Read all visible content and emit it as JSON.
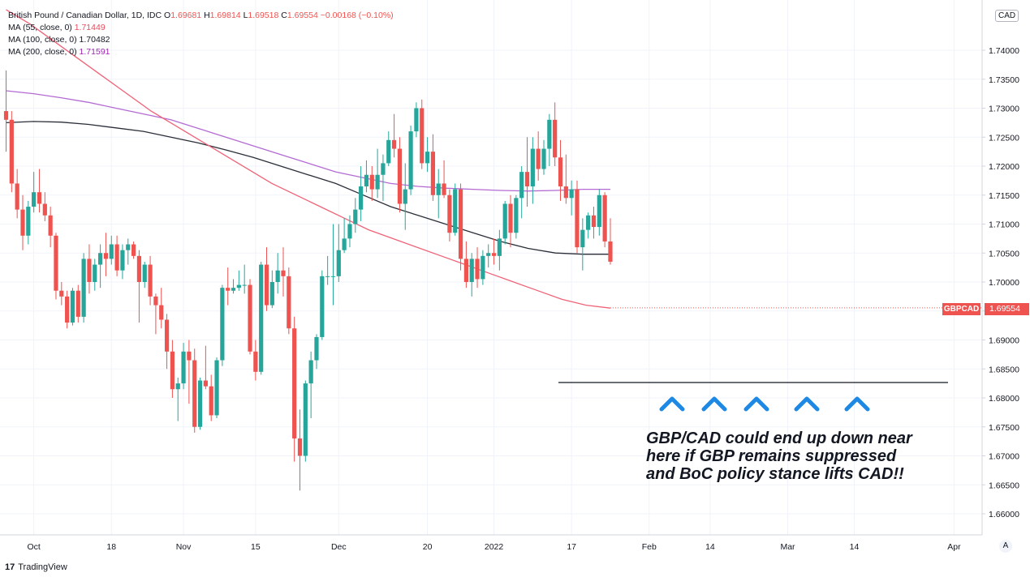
{
  "legend": {
    "symbol": "British Pound / Canadian Dollar, 1D, IDC",
    "o_label": "O",
    "o": "1.69681",
    "h_label": "H",
    "h": "1.69814",
    "l_label": "L",
    "l": "1.69518",
    "c_label": "C",
    "c": "1.69554",
    "change": "−0.00168 (−0.10%)",
    "ma55_label": "MA (55, close, 0)",
    "ma55": "1.71449",
    "ma100_label": "MA (100, close, 0)",
    "ma100": "1.70482",
    "ma200_label": "MA (200, close, 0)",
    "ma200": "1.71591"
  },
  "currency_badge": "CAD",
  "price_tag": {
    "name": "GBPCAD",
    "value": "1.69554"
  },
  "annotation": {
    "lines": [
      "GBP/CAD could end up down near",
      "here if GBP remains suppressed",
      "and BoC policy stance lifts CAD!!"
    ]
  },
  "branding": "TradingView",
  "auto_button": "A",
  "colors": {
    "up": "#26a69a",
    "down": "#ef5350",
    "ma55": "#f06277",
    "ma100": "#2a2e39",
    "ma200": "#b36bd3",
    "arrow": "#1e88e5"
  },
  "chart_data": {
    "type": "candlestick",
    "title": "British Pound / Canadian Dollar, 1D, IDC",
    "ylim": [
      1.6575,
      1.7475
    ],
    "yticks": [
      "1.74000",
      "1.73500",
      "1.73000",
      "1.72500",
      "1.72000",
      "1.71500",
      "1.71000",
      "1.70500",
      "1.70000",
      "1.69500",
      "1.69000",
      "1.68500",
      "1.68000",
      "1.67500",
      "1.67000",
      "1.66500",
      "1.66000"
    ],
    "xlabels": [
      {
        "i": 5,
        "label": "Oct"
      },
      {
        "i": 19,
        "label": "18"
      },
      {
        "i": 32,
        "label": "Nov"
      },
      {
        "i": 45,
        "label": "15"
      },
      {
        "i": 60,
        "label": "Dec"
      },
      {
        "i": 76,
        "label": "20"
      },
      {
        "i": 88,
        "label": "2022"
      },
      {
        "i": 102,
        "label": "17"
      },
      {
        "i": 116,
        "label": "Feb"
      },
      {
        "i": 127,
        "label": "14"
      },
      {
        "i": 141,
        "label": "Mar"
      },
      {
        "i": 153,
        "label": "14"
      },
      {
        "i": 171,
        "label": "Apr"
      }
    ],
    "candles": [
      [
        1.7295,
        1.7365,
        1.7225,
        1.728
      ],
      [
        1.728,
        1.7295,
        1.7155,
        1.717
      ],
      [
        1.717,
        1.7195,
        1.711,
        1.7125
      ],
      [
        1.7125,
        1.715,
        1.7055,
        1.708
      ],
      [
        1.708,
        1.714,
        1.7065,
        1.713
      ],
      [
        1.713,
        1.719,
        1.712,
        1.7155
      ],
      [
        1.7155,
        1.7195,
        1.712,
        1.7135
      ],
      [
        1.7135,
        1.7155,
        1.7105,
        1.7115
      ],
      [
        1.7115,
        1.713,
        1.706,
        1.708
      ],
      [
        1.708,
        1.7085,
        1.697,
        1.6985
      ],
      [
        1.6985,
        1.7,
        1.696,
        1.6975
      ],
      [
        1.6975,
        1.6985,
        1.692,
        1.693
      ],
      [
        1.693,
        1.699,
        1.6925,
        1.6985
      ],
      [
        1.6985,
        1.6995,
        1.693,
        1.694
      ],
      [
        1.694,
        1.705,
        1.693,
        1.704
      ],
      [
        1.704,
        1.7065,
        1.698,
        1.7
      ],
      [
        1.7,
        1.704,
        1.6985,
        1.703
      ],
      [
        1.703,
        1.7065,
        1.699,
        1.705
      ],
      [
        1.705,
        1.7085,
        1.701,
        1.704
      ],
      [
        1.704,
        1.708,
        1.703,
        1.7065
      ],
      [
        1.7065,
        1.708,
        1.701,
        1.702
      ],
      [
        1.702,
        1.7065,
        1.7005,
        1.7055
      ],
      [
        1.7055,
        1.7075,
        1.703,
        1.7065
      ],
      [
        1.7065,
        1.707,
        1.704,
        1.7045
      ],
      [
        1.7045,
        1.7055,
        1.693,
        1.7
      ],
      [
        1.7,
        1.7035,
        1.699,
        1.703
      ],
      [
        1.703,
        1.7045,
        1.696,
        1.6975
      ],
      [
        1.6975,
        1.698,
        1.691,
        1.696
      ],
      [
        1.696,
        1.699,
        1.692,
        1.6935
      ],
      [
        1.6935,
        1.6945,
        1.685,
        1.688
      ],
      [
        1.688,
        1.69,
        1.68,
        1.6815
      ],
      [
        1.6815,
        1.6835,
        1.676,
        1.6825
      ],
      [
        1.6825,
        1.6895,
        1.6815,
        1.688
      ],
      [
        1.688,
        1.69,
        1.679,
        1.6865
      ],
      [
        1.6865,
        1.6885,
        1.674,
        1.675
      ],
      [
        1.675,
        1.6835,
        1.6745,
        1.683
      ],
      [
        1.683,
        1.689,
        1.6815,
        1.682
      ],
      [
        1.682,
        1.684,
        1.676,
        1.677
      ],
      [
        1.677,
        1.687,
        1.6765,
        1.6865
      ],
      [
        1.6865,
        1.6995,
        1.6855,
        1.699
      ],
      [
        1.699,
        1.7025,
        1.696,
        1.6985
      ],
      [
        1.6985,
        1.7005,
        1.698,
        1.699
      ],
      [
        1.699,
        1.702,
        1.6985,
        1.6995
      ],
      [
        1.6995,
        1.703,
        1.698,
        1.6995
      ],
      [
        1.6995,
        1.7005,
        1.6875,
        1.688
      ],
      [
        1.688,
        1.69,
        1.683,
        1.6845
      ],
      [
        1.6845,
        1.7035,
        1.684,
        1.703
      ],
      [
        1.703,
        1.706,
        1.695,
        1.696
      ],
      [
        1.696,
        1.702,
        1.6955,
        1.7
      ],
      [
        1.7,
        1.705,
        1.698,
        1.702
      ],
      [
        1.702,
        1.706,
        1.6975,
        1.701
      ],
      [
        1.701,
        1.7025,
        1.691,
        1.692
      ],
      [
        1.692,
        1.694,
        1.669,
        1.673
      ],
      [
        1.673,
        1.678,
        1.664,
        1.67
      ],
      [
        1.67,
        1.683,
        1.669,
        1.6825
      ],
      [
        1.6825,
        1.688,
        1.6765,
        1.6865
      ],
      [
        1.6865,
        1.691,
        1.685,
        1.6905
      ],
      [
        1.6905,
        1.702,
        1.69,
        1.701
      ],
      [
        1.701,
        1.7045,
        1.6995,
        1.701
      ],
      [
        1.701,
        1.71,
        1.696,
        1.701
      ],
      [
        1.701,
        1.71,
        1.7,
        1.7055
      ],
      [
        1.7055,
        1.711,
        1.705,
        1.7075
      ],
      [
        1.7075,
        1.7115,
        1.706,
        1.71
      ],
      [
        1.71,
        1.7145,
        1.7085,
        1.7125
      ],
      [
        1.7125,
        1.72,
        1.7105,
        1.7165
      ],
      [
        1.7165,
        1.721,
        1.7155,
        1.7185
      ],
      [
        1.7185,
        1.72,
        1.714,
        1.716
      ],
      [
        1.716,
        1.723,
        1.7145,
        1.7185
      ],
      [
        1.7185,
        1.722,
        1.714,
        1.7205
      ],
      [
        1.7205,
        1.726,
        1.72,
        1.7245
      ],
      [
        1.7245,
        1.729,
        1.7215,
        1.723
      ],
      [
        1.723,
        1.725,
        1.712,
        1.7135
      ],
      [
        1.7135,
        1.7205,
        1.709,
        1.716
      ],
      [
        1.716,
        1.727,
        1.715,
        1.726
      ],
      [
        1.726,
        1.731,
        1.725,
        1.73
      ],
      [
        1.73,
        1.7315,
        1.7195,
        1.7205
      ],
      [
        1.7205,
        1.725,
        1.719,
        1.7225
      ],
      [
        1.7225,
        1.7255,
        1.714,
        1.715
      ],
      [
        1.715,
        1.7195,
        1.711,
        1.717
      ],
      [
        1.717,
        1.721,
        1.7145,
        1.715
      ],
      [
        1.715,
        1.716,
        1.707,
        1.7085
      ],
      [
        1.7085,
        1.717,
        1.708,
        1.716
      ],
      [
        1.716,
        1.717,
        1.702,
        1.704
      ],
      [
        1.704,
        1.707,
        1.699,
        1.7
      ],
      [
        1.7,
        1.705,
        1.6975,
        1.704
      ],
      [
        1.704,
        1.706,
        1.699,
        1.7005
      ],
      [
        1.7005,
        1.7055,
        1.6995,
        1.7045
      ],
      [
        1.7045,
        1.7065,
        1.7025,
        1.705
      ],
      [
        1.705,
        1.7075,
        1.703,
        1.7045
      ],
      [
        1.7045,
        1.709,
        1.702,
        1.7075
      ],
      [
        1.7075,
        1.714,
        1.7065,
        1.7135
      ],
      [
        1.7135,
        1.715,
        1.706,
        1.7085
      ],
      [
        1.7085,
        1.715,
        1.7075,
        1.7145
      ],
      [
        1.7145,
        1.72,
        1.711,
        1.719
      ],
      [
        1.719,
        1.725,
        1.713,
        1.7165
      ],
      [
        1.7165,
        1.725,
        1.7135,
        1.723
      ],
      [
        1.723,
        1.726,
        1.7175,
        1.7195
      ],
      [
        1.7195,
        1.7245,
        1.7185,
        1.723
      ],
      [
        1.723,
        1.729,
        1.72,
        1.728
      ],
      [
        1.728,
        1.731,
        1.72,
        1.7215
      ],
      [
        1.7215,
        1.7245,
        1.714,
        1.7165
      ],
      [
        1.7165,
        1.722,
        1.7135,
        1.7145
      ],
      [
        1.7145,
        1.7175,
        1.7115,
        1.716
      ],
      [
        1.716,
        1.7175,
        1.705,
        1.706
      ],
      [
        1.706,
        1.711,
        1.702,
        1.709
      ],
      [
        1.709,
        1.712,
        1.7075,
        1.7115
      ],
      [
        1.7115,
        1.713,
        1.7075,
        1.7095
      ],
      [
        1.7095,
        1.716,
        1.708,
        1.715
      ],
      [
        1.715,
        1.7155,
        1.706,
        1.707
      ],
      [
        1.707,
        1.711,
        1.703,
        1.7035
      ]
    ],
    "ma55": [
      1.747,
      1.7445,
      1.7415,
      1.7385,
      1.7355,
      1.7325,
      1.7295,
      1.727,
      1.7245,
      1.722,
      1.7195,
      1.717,
      1.715,
      1.713,
      1.711,
      1.709,
      1.7075,
      1.706,
      1.7045,
      1.703,
      1.7015,
      1.7,
      1.6985,
      1.697,
      1.696,
      1.6955
    ],
    "ma100": [
      1.7275,
      1.7277,
      1.7276,
      1.7272,
      1.7266,
      1.726,
      1.725,
      1.724,
      1.7228,
      1.7215,
      1.72,
      1.7185,
      1.717,
      1.715,
      1.713,
      1.7115,
      1.71,
      1.7085,
      1.707,
      1.7058,
      1.705,
      1.7048,
      1.7048
    ],
    "ma200": [
      1.733,
      1.7325,
      1.7318,
      1.731,
      1.73,
      1.729,
      1.728,
      1.7265,
      1.725,
      1.7235,
      1.722,
      1.7205,
      1.719,
      1.718,
      1.717,
      1.7165,
      1.7162,
      1.716,
      1.7158,
      1.7157,
      1.7158,
      1.716,
      1.716
    ],
    "support_level": 1.683,
    "last_price": 1.69554
  }
}
